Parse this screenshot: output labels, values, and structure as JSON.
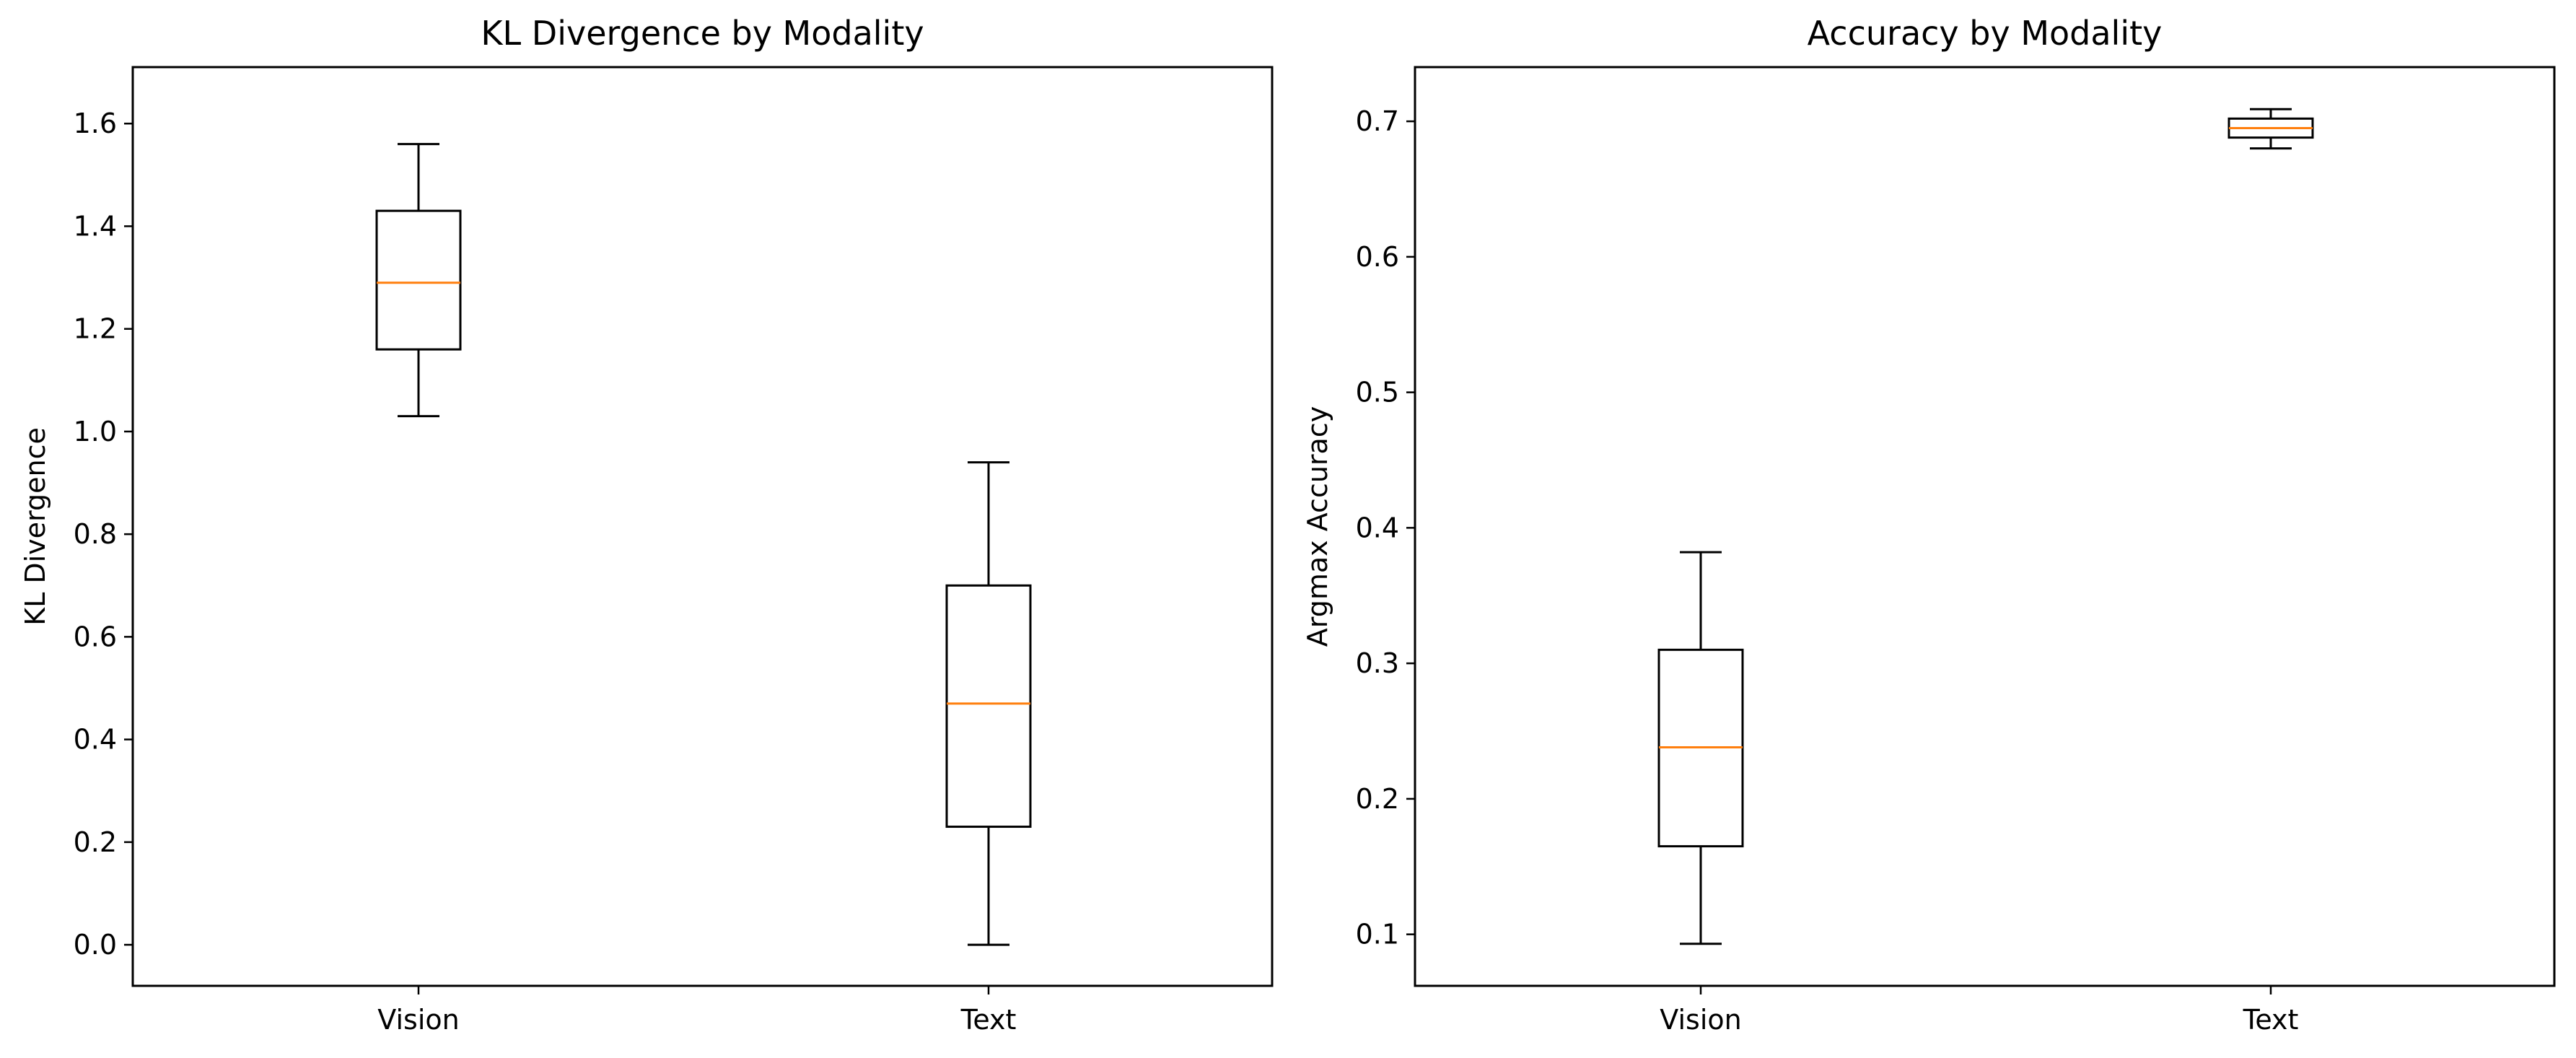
{
  "chart_data": [
    {
      "type": "box",
      "title": "KL Divergence by Modality",
      "xlabel": "",
      "ylabel": "KL Divergence",
      "ylim": [
        -0.08,
        1.71
      ],
      "yticks": [
        0.0,
        0.2,
        0.4,
        0.6,
        0.8,
        1.0,
        1.2,
        1.4,
        1.6
      ],
      "ytick_labels": [
        "0.0",
        "0.2",
        "0.4",
        "0.6",
        "0.8",
        "1.0",
        "1.2",
        "1.4",
        "1.6"
      ],
      "categories": [
        "Vision",
        "Text"
      ],
      "boxes": [
        {
          "label": "Vision",
          "whisker_low": 1.03,
          "q1": 1.16,
          "median": 1.29,
          "q3": 1.43,
          "whisker_high": 1.56
        },
        {
          "label": "Text",
          "whisker_low": 0.0,
          "q1": 0.23,
          "median": 0.47,
          "q3": 0.7,
          "whisker_high": 0.94
        }
      ],
      "grid": false,
      "box_color": "#000000",
      "median_color": "#ff7f0e"
    },
    {
      "type": "box",
      "title": "Accuracy by Modality",
      "xlabel": "",
      "ylabel": "Argmax Accuracy",
      "ylim": [
        0.062,
        0.74
      ],
      "yticks": [
        0.1,
        0.2,
        0.3,
        0.4,
        0.5,
        0.6,
        0.7
      ],
      "ytick_labels": [
        "0.1",
        "0.2",
        "0.3",
        "0.4",
        "0.5",
        "0.6",
        "0.7"
      ],
      "categories": [
        "Vision",
        "Text"
      ],
      "boxes": [
        {
          "label": "Vision",
          "whisker_low": 0.093,
          "q1": 0.165,
          "median": 0.238,
          "q3": 0.31,
          "whisker_high": 0.382
        },
        {
          "label": "Text",
          "whisker_low": 0.68,
          "q1": 0.688,
          "median": 0.695,
          "q3": 0.702,
          "whisker_high": 0.709
        }
      ],
      "grid": false,
      "box_color": "#000000",
      "median_color": "#ff7f0e"
    }
  ]
}
